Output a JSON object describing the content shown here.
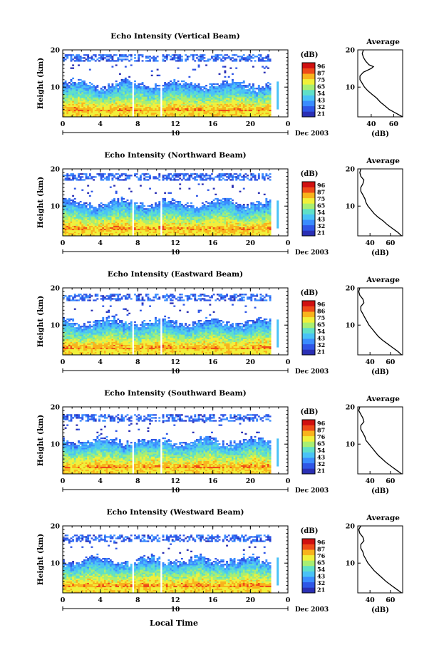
{
  "figure": {
    "xaxis_label": "Local Time",
    "date_label": "Dec 2003",
    "day_marker": "10"
  },
  "colors": {
    "colormap": [
      "#2a2fb4",
      "#2f56e6",
      "#3a8cff",
      "#49c2f6",
      "#5fe0c8",
      "#a8ee72",
      "#f0f03a",
      "#f8b31c",
      "#ee4a18",
      "#d01010"
    ]
  },
  "chart_data": [
    {
      "type": "heatmap",
      "title": "Echo Intensity (Vertical Beam)",
      "ylabel": "Height (km)",
      "ylim": [
        2,
        20
      ],
      "yticks": [
        10,
        20
      ],
      "xlim": [
        0,
        24
      ],
      "xticks": [
        "0",
        "4",
        "8",
        "12",
        "16",
        "20",
        "0"
      ],
      "colorbar": {
        "label": "(dB)",
        "ticks": [
          "96",
          "87",
          "75",
          "65",
          "54",
          "43",
          "32",
          "21"
        ],
        "range": [
          21,
          96
        ]
      },
      "data_gaps_hours": [
        [
          7.3,
          7.7
        ],
        [
          10.5,
          10.7
        ],
        [
          22.3,
          24
        ]
      ],
      "profile": {
        "title": "Average",
        "xlabel": "(dB)",
        "xticks": [
          "40",
          "60"
        ],
        "xlim": [
          28,
          68
        ],
        "ylim": [
          2,
          20
        ],
        "yticks": [
          10,
          20
        ],
        "heights": [
          2,
          3,
          4,
          5,
          6,
          7,
          8,
          9,
          10,
          11,
          12,
          13,
          14,
          15,
          15.5,
          16,
          17,
          18,
          19,
          20
        ],
        "values": [
          68,
          62,
          56,
          52,
          48,
          45,
          41,
          37,
          34,
          32,
          30,
          30,
          33,
          40,
          42,
          38,
          35,
          33,
          32,
          33
        ]
      }
    },
    {
      "type": "heatmap",
      "title": "Echo Intensity (Northward Beam)",
      "ylabel": "Height (km)",
      "ylim": [
        2,
        20
      ],
      "yticks": [
        10,
        20
      ],
      "xlim": [
        0,
        24
      ],
      "xticks": [
        "0",
        "4",
        "8",
        "12",
        "16",
        "20",
        "0"
      ],
      "colorbar": {
        "label": "(dB)",
        "ticks": [
          "96",
          "87",
          "75",
          "65",
          "54",
          "43",
          "32",
          "21"
        ],
        "range": [
          21,
          96
        ]
      },
      "data_gaps_hours": [
        [
          7.3,
          7.7
        ],
        [
          10.5,
          10.7
        ],
        [
          22.3,
          24
        ]
      ],
      "profile": {
        "title": "Average",
        "xlabel": "(dB)",
        "xticks": [
          "40",
          "60"
        ],
        "xlim": [
          28,
          72
        ],
        "ylim": [
          2,
          20
        ],
        "yticks": [
          10,
          20
        ],
        "heights": [
          2,
          3,
          4,
          5,
          6,
          7,
          8,
          9,
          10,
          11,
          12,
          13,
          14,
          15,
          16,
          17,
          18,
          19,
          20
        ],
        "values": [
          71,
          67,
          62,
          57,
          53,
          48,
          44,
          41,
          38,
          36,
          35,
          33,
          31,
          31,
          33,
          34,
          31,
          30,
          31
        ]
      }
    },
    {
      "type": "heatmap",
      "title": "Echo Intensity (Eastward Beam)",
      "ylabel": "Height (km)",
      "ylim": [
        2,
        20
      ],
      "yticks": [
        10,
        20
      ],
      "xlim": [
        0,
        24
      ],
      "xticks": [
        "0",
        "4",
        "8",
        "12",
        "16",
        "20",
        "0"
      ],
      "colorbar": {
        "label": "(dB)",
        "ticks": [
          "96",
          "86",
          "75",
          "65",
          "54",
          "43",
          "32",
          "21"
        ],
        "range": [
          21,
          96
        ]
      },
      "data_gaps_hours": [
        [
          7.3,
          7.7
        ],
        [
          10.5,
          10.7
        ],
        [
          22.3,
          24
        ]
      ],
      "profile": {
        "title": "Average",
        "xlabel": "(dB)",
        "xticks": [
          "40",
          "60"
        ],
        "xlim": [
          28,
          72
        ],
        "ylim": [
          2,
          20
        ],
        "yticks": [
          10,
          20
        ],
        "heights": [
          2,
          3,
          4,
          5,
          6,
          7,
          8,
          9,
          10,
          11,
          12,
          13,
          14,
          15,
          16,
          17,
          18,
          19,
          20
        ],
        "values": [
          71,
          67,
          62,
          57,
          52,
          48,
          45,
          42,
          39,
          37,
          35,
          33,
          31,
          31,
          34,
          33,
          30,
          29,
          30
        ]
      }
    },
    {
      "type": "heatmap",
      "title": "Echo Intensity (Southward Beam)",
      "ylabel": "Height (km)",
      "ylim": [
        2,
        20
      ],
      "yticks": [
        10,
        20
      ],
      "xlim": [
        0,
        24
      ],
      "xticks": [
        "0",
        "4",
        "8",
        "12",
        "16",
        "20",
        "0"
      ],
      "colorbar": {
        "label": "(dB)",
        "ticks": [
          "96",
          "87",
          "76",
          "65",
          "54",
          "43",
          "32",
          "21"
        ],
        "range": [
          21,
          96
        ]
      },
      "data_gaps_hours": [
        [
          7.3,
          7.7
        ],
        [
          10.5,
          10.7
        ],
        [
          22.3,
          24
        ]
      ],
      "profile": {
        "title": "Average",
        "xlabel": "(dB)",
        "xticks": [
          "40",
          "60"
        ],
        "xlim": [
          28,
          72
        ],
        "ylim": [
          2,
          20
        ],
        "yticks": [
          10,
          20
        ],
        "heights": [
          2,
          3,
          4,
          5,
          6,
          7,
          8,
          9,
          10,
          11,
          12,
          13,
          14,
          15,
          16,
          17,
          18,
          19,
          20
        ],
        "values": [
          71,
          66,
          61,
          56,
          52,
          48,
          45,
          42,
          39,
          36,
          35,
          33,
          31,
          31,
          34,
          33,
          31,
          29,
          30
        ]
      }
    },
    {
      "type": "heatmap",
      "title": "Echo Intensity (Westward Beam)",
      "ylabel": "Height (km)",
      "ylim": [
        2,
        20
      ],
      "yticks": [
        10,
        20
      ],
      "xlim": [
        0,
        24
      ],
      "xticks": [
        "0",
        "4",
        "8",
        "12",
        "16",
        "20",
        "0"
      ],
      "colorbar": {
        "label": "(dB)",
        "ticks": [
          "96",
          "87",
          "76",
          "65",
          "54",
          "43",
          "32",
          "21"
        ],
        "range": [
          21,
          96
        ]
      },
      "data_gaps_hours": [
        [
          7.3,
          7.7
        ],
        [
          10.5,
          10.7
        ],
        [
          22.3,
          24
        ]
      ],
      "profile": {
        "title": "Average",
        "xlabel": "(dB)",
        "xticks": [
          "40",
          "60"
        ],
        "xlim": [
          28,
          72
        ],
        "ylim": [
          2,
          20
        ],
        "yticks": [
          10,
          20
        ],
        "heights": [
          2,
          3,
          4,
          5,
          6,
          7,
          8,
          9,
          10,
          11,
          12,
          13,
          14,
          15,
          16,
          17,
          18,
          19,
          20
        ],
        "values": [
          71,
          66,
          61,
          56,
          52,
          48,
          44,
          41,
          38,
          36,
          34,
          33,
          31,
          31,
          34,
          33,
          30,
          29,
          31
        ]
      }
    }
  ]
}
